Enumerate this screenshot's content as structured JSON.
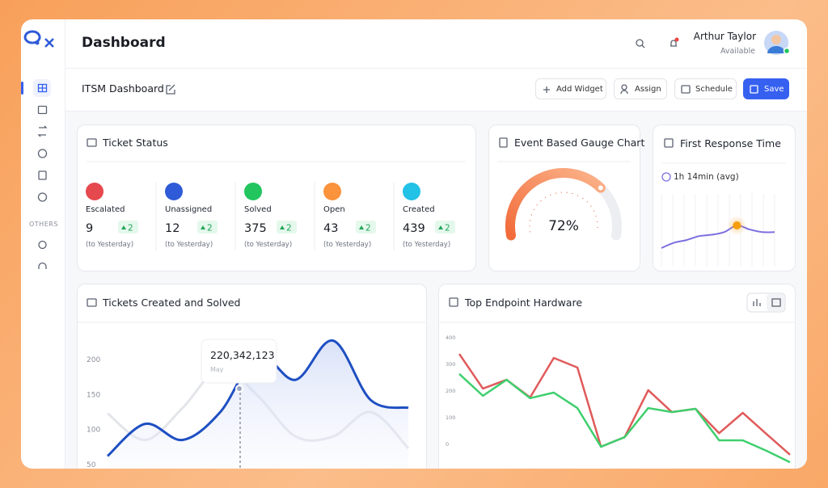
{
  "sidebar": {
    "section_label": "OTHERS"
  },
  "header": {
    "title": "Dashboard",
    "user_name": "Arthur Taylor",
    "user_status": "Available"
  },
  "toolbar": {
    "title": "ITSM Dashboard",
    "buttons": [
      "Add Widget",
      "Assign",
      "Schedule",
      "Save"
    ]
  },
  "ticket_status": {
    "title": "Ticket Status",
    "items": [
      {
        "label": "Escalated",
        "count": 9,
        "change": 2,
        "note": "(to Yesterday)",
        "color": "#e5484d"
      },
      {
        "label": "Unassigned",
        "count": 12,
        "change": 2,
        "note": "(to Yesterday)",
        "color": "#2f5bd8"
      },
      {
        "label": "Solved",
        "count": 375,
        "change": 2,
        "note": "(to Yesterday)",
        "color": "#22c55e"
      },
      {
        "label": "Open",
        "count": 43,
        "change": 2,
        "note": "(to Yesterday)",
        "color": "#fb923c"
      },
      {
        "label": "Created",
        "count": 439,
        "change": 2,
        "note": "(to Yesterday)",
        "color": "#22c1e6"
      }
    ]
  },
  "gauge": {
    "title": "Event Based Gauge Chart",
    "type": "gauge",
    "value": 72,
    "value_label": "72%",
    "range": [
      0,
      100
    ],
    "color": "#f26b3a"
  },
  "first_response": {
    "title": "First Response Time",
    "subtitle": "1h 14min (avg)",
    "type": "line",
    "values": [
      18,
      22,
      24,
      27,
      28,
      30,
      35,
      32,
      30,
      30
    ],
    "highlight_index": 6,
    "color": "#7c6fe0"
  },
  "tickets_chart": {
    "title": "Tickets Created and Solved",
    "type": "line",
    "ylim": [
      44,
      252
    ],
    "yticks": [
      50,
      100,
      150,
      200
    ],
    "series": [
      {
        "color": "#1e4fc2",
        "values": [
          62,
          108,
          85,
          125,
          206,
          171,
          227,
          142,
          131
        ]
      },
      {
        "color": "#e3e5ea",
        "values": [
          123,
          85,
          131,
          188,
          148,
          90,
          90,
          125,
          73
        ]
      }
    ],
    "tooltip": {
      "value": "220,342,123",
      "category": "May"
    }
  },
  "hardware_chart": {
    "title": "Top Endpoint Hardware",
    "type": "line",
    "ylim": [
      -91,
      439
    ],
    "yticks": [
      0,
      100,
      200,
      300,
      400
    ],
    "series": [
      {
        "color": "#e05a5a",
        "values": [
          339,
          209,
          242,
          176,
          324,
          288,
          -9,
          27,
          203,
          121,
          133,
          42,
          118,
          39,
          -39
        ]
      },
      {
        "color": "#3fcf6e",
        "values": [
          264,
          182,
          242,
          173,
          194,
          136,
          -9,
          27,
          136,
          121,
          133,
          15,
          15,
          -24,
          -67
        ]
      }
    ]
  }
}
